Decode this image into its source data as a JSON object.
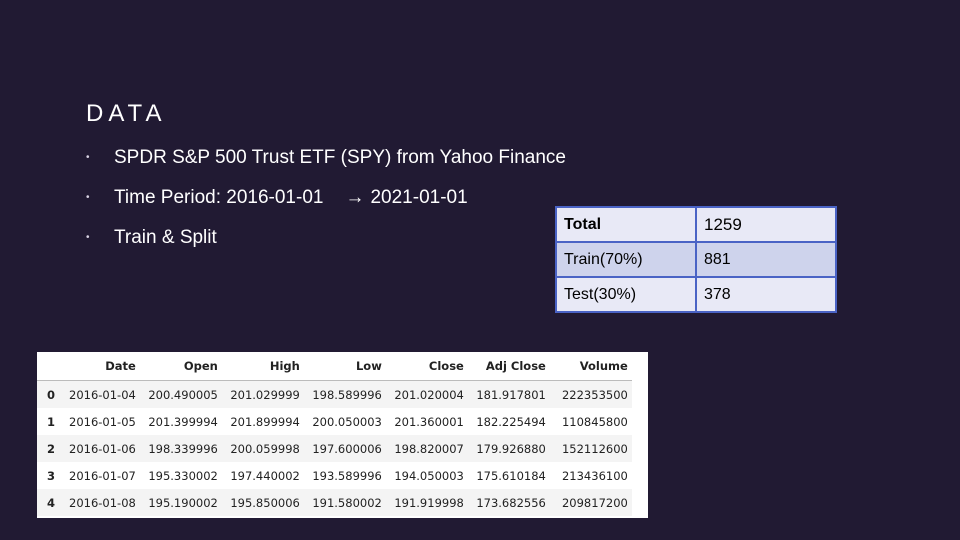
{
  "slide": {
    "title": "DATA",
    "bullets": [
      {
        "text": "SPDR S&P 500 Trust ETF (SPY) from Yahoo Finance"
      },
      {
        "text": "Time Period: 2016-01-01",
        "arrow": "→",
        "suffix": "2021-01-01"
      },
      {
        "text": "Train & Split"
      }
    ],
    "bullet_marker": "•"
  },
  "split_table": {
    "rows": [
      {
        "label": "Total",
        "value": "1259"
      },
      {
        "label": "Train(70%)",
        "value": "881"
      },
      {
        "label": "Test(30%)",
        "value": "378"
      }
    ]
  },
  "dataframe": {
    "columns": [
      "",
      "Date",
      "Open",
      "High",
      "Low",
      "Close",
      "Adj Close",
      "Volume"
    ],
    "rows": [
      {
        "index": "0",
        "date": "2016-01-04",
        "open": "200.490005",
        "high": "201.029999",
        "low": "198.589996",
        "close": "201.020004",
        "adj_close": "181.917801",
        "volume": "222353500"
      },
      {
        "index": "1",
        "date": "2016-01-05",
        "open": "201.399994",
        "high": "201.899994",
        "low": "200.050003",
        "close": "201.360001",
        "adj_close": "182.225494",
        "volume": "110845800"
      },
      {
        "index": "2",
        "date": "2016-01-06",
        "open": "198.339996",
        "high": "200.059998",
        "low": "197.600006",
        "close": "198.820007",
        "adj_close": "179.926880",
        "volume": "152112600"
      },
      {
        "index": "3",
        "date": "2016-01-07",
        "open": "195.330002",
        "high": "197.440002",
        "low": "193.589996",
        "close": "194.050003",
        "adj_close": "175.610184",
        "volume": "213436100"
      },
      {
        "index": "4",
        "date": "2016-01-08",
        "open": "195.190002",
        "high": "195.850006",
        "low": "191.580002",
        "close": "191.919998",
        "adj_close": "173.682556",
        "volume": "209817200"
      }
    ]
  },
  "colors": {
    "background": "#211a33",
    "table_border": "#4a63c5",
    "table_row_light": "#e8e9f6",
    "table_row_dark": "#ced3ec"
  }
}
